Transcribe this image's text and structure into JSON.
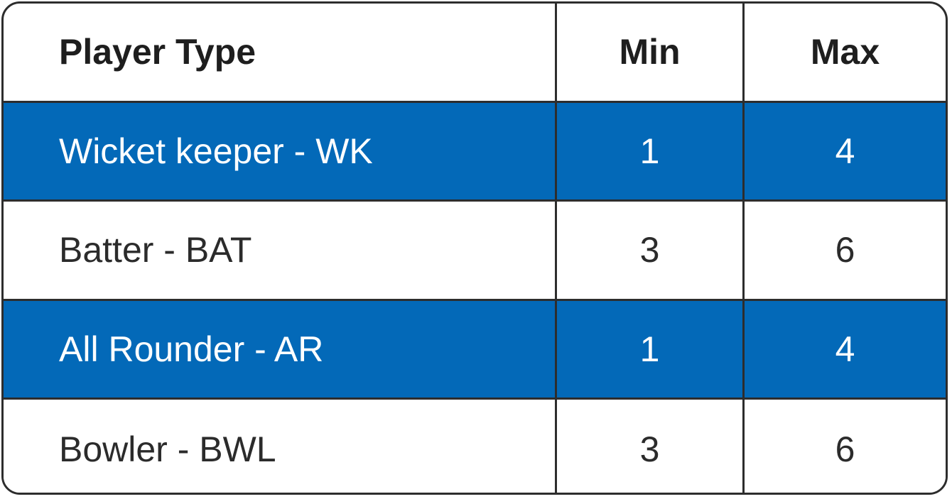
{
  "table": {
    "headers": {
      "player_type": "Player Type",
      "min": "Min",
      "max": "Max"
    },
    "rows": [
      {
        "player_type": "Wicket keeper - WK",
        "min": "1",
        "max": "4"
      },
      {
        "player_type": "Batter - BAT",
        "min": "3",
        "max": "6"
      },
      {
        "player_type": "All Rounder - AR",
        "min": "1",
        "max": "4"
      },
      {
        "player_type": "Bowler - BWL",
        "min": "3",
        "max": "6"
      }
    ]
  },
  "colors": {
    "highlight_row": "#0369b8",
    "border": "#2d2d2d",
    "text": "#2b2b2b"
  }
}
